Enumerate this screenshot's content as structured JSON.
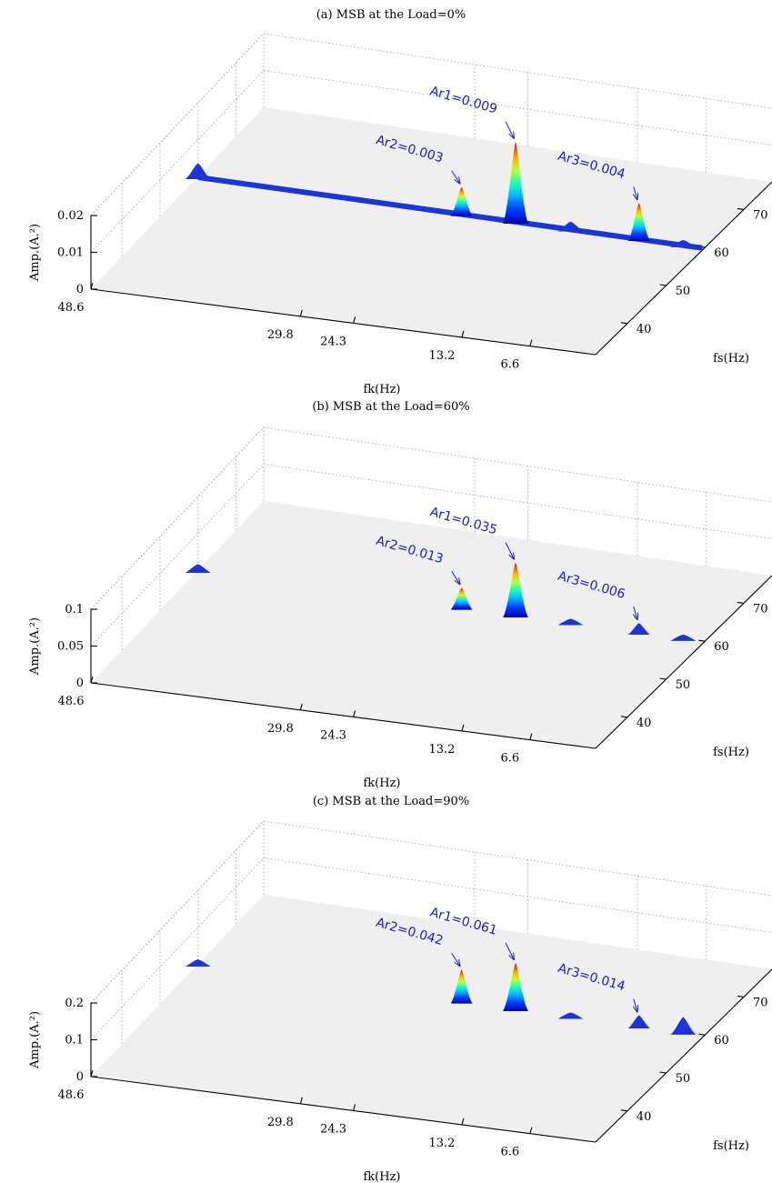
{
  "chart_data": [
    {
      "type": "surface3d",
      "title": "(a) MSB at the Load=0%",
      "xlabel": "fk(Hz)",
      "ylabel": "fs(Hz)",
      "zlabel": "Amp.(A.²)",
      "fk_ticks": [
        "48.6",
        "29.8",
        "24.3",
        "13.2",
        "6.6"
      ],
      "fs_ticks": [
        "40",
        "50",
        "60",
        "70"
      ],
      "z_ticks": [
        "0",
        "0.01",
        "0.02"
      ],
      "zlim": [
        0,
        0.02
      ],
      "grid": true,
      "peaks": [
        {
          "label": "Ar2=0.003",
          "fk": 24.3,
          "value": 0.003
        },
        {
          "label": "Ar1=0.009",
          "fk": 18.8,
          "value": 0.009
        },
        {
          "label": "Ar3=0.004",
          "fk": 6.6,
          "value": 0.004
        }
      ],
      "minor_peaks": [
        {
          "fk": 48.6,
          "value": 0.0015
        },
        {
          "fk": 13.2,
          "value": 0.0008
        },
        {
          "fk": 2.0,
          "value": 0.0005
        }
      ]
    },
    {
      "type": "surface3d",
      "title": "(b) MSB at the Load=60%",
      "xlabel": "fk(Hz)",
      "ylabel": "fs(Hz)",
      "zlabel": "Amp.(A.²)",
      "fk_ticks": [
        "48.6",
        "29.8",
        "24.3",
        "13.2",
        "6.6"
      ],
      "fs_ticks": [
        "40",
        "50",
        "60",
        "70"
      ],
      "z_ticks": [
        "0",
        "0.05",
        "0.1"
      ],
      "zlim": [
        0,
        0.1
      ],
      "grid": true,
      "peaks": [
        {
          "label": "Ar2=0.013",
          "fk": 24.3,
          "value": 0.013
        },
        {
          "label": "Ar1=0.035",
          "fk": 18.8,
          "value": 0.035
        },
        {
          "label": "Ar3=0.006",
          "fk": 6.6,
          "value": 0.006
        }
      ],
      "minor_peaks": [
        {
          "fk": 48.6,
          "value": 0.004
        },
        {
          "fk": 13.2,
          "value": 0.001
        },
        {
          "fk": 2.0,
          "value": 0.001
        }
      ]
    },
    {
      "type": "surface3d",
      "title": "(c) MSB at the Load=90%",
      "xlabel": "fk(Hz)",
      "ylabel": "fs(Hz)",
      "zlabel": "Amp.(A.²)",
      "fk_ticks": [
        "48.6",
        "29.8",
        "24.3",
        "13.2",
        "6.6"
      ],
      "fs_ticks": [
        "40",
        "50",
        "60",
        "70"
      ],
      "z_ticks": [
        "0",
        "0.1",
        "0.2"
      ],
      "zlim": [
        0,
        0.2
      ],
      "grid": true,
      "peaks": [
        {
          "label": "Ar2=0.042",
          "fk": 24.3,
          "value": 0.042
        },
        {
          "label": "Ar1=0.061",
          "fk": 18.8,
          "value": 0.061
        },
        {
          "label": "Ar3=0.014",
          "fk": 6.6,
          "value": 0.014
        }
      ],
      "minor_peaks": [
        {
          "fk": 48.6,
          "value": 0.006
        },
        {
          "fk": 13.2,
          "value": 0.002
        },
        {
          "fk": 2.0,
          "value": 0.02
        }
      ]
    }
  ]
}
